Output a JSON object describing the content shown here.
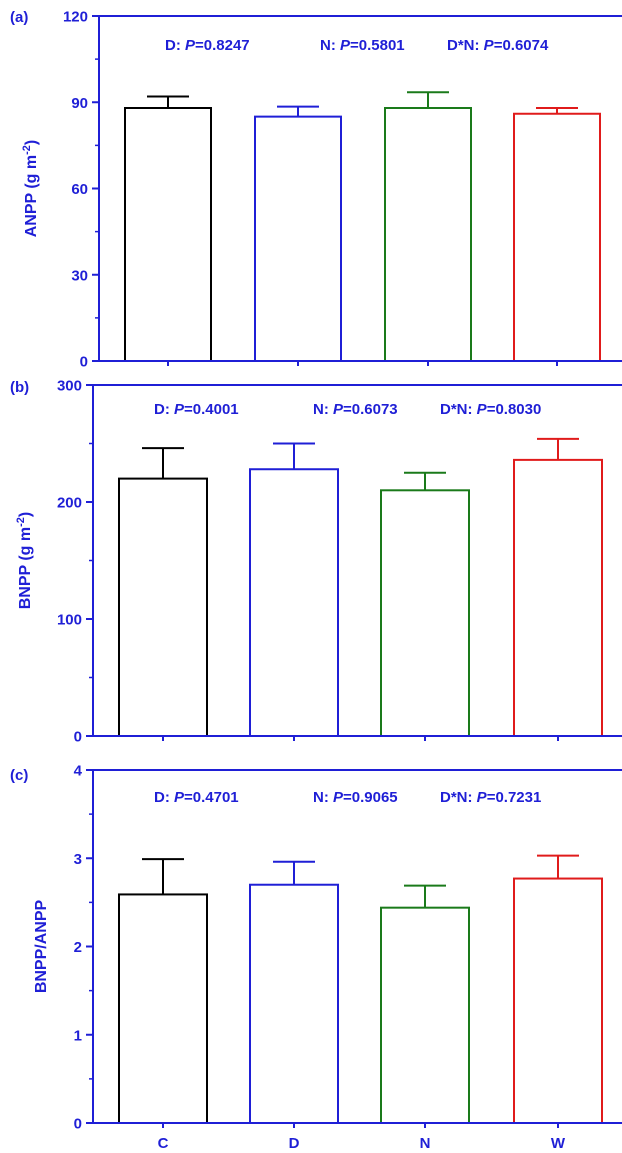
{
  "colors": {
    "axis": "#1f1fd6",
    "text": "#1f1fd6",
    "panel_label": "#1f1fd6"
  },
  "categories": [
    "C",
    "D",
    "N",
    "W"
  ],
  "chart_data": [
    {
      "type": "bar",
      "panel_label": "(a)",
      "categories": [
        "C",
        "D",
        "N",
        "W"
      ],
      "values": [
        88,
        85,
        88,
        86
      ],
      "errors": [
        4,
        3.5,
        5.5,
        2
      ],
      "bar_colors": [
        "#000000",
        "#1f1fd6",
        "#1a7a1a",
        "#e01b1b"
      ],
      "ylabel_main": "ANPP (g m",
      "ylabel_sup": "-2",
      "ylabel_tail": ")",
      "ylim": [
        0,
        120
      ],
      "yticks": [
        0,
        30,
        60,
        90,
        120
      ],
      "ytick_labels": [
        "0",
        "30",
        "60",
        "90",
        "120"
      ],
      "stats": [
        {
          "label": "D: ",
          "p": "P",
          "value": "=0.8247"
        },
        {
          "label": "N: ",
          "p": "P",
          "value": "=0.5801"
        },
        {
          "label": "D*N: ",
          "p": "P",
          "value": "=0.6074"
        }
      ],
      "show_xlabels": false
    },
    {
      "type": "bar",
      "panel_label": "(b)",
      "categories": [
        "C",
        "D",
        "N",
        "W"
      ],
      "values": [
        220,
        228,
        210,
        236
      ],
      "errors": [
        26,
        22,
        15,
        18
      ],
      "bar_colors": [
        "#000000",
        "#1f1fd6",
        "#1a7a1a",
        "#e01b1b"
      ],
      "ylabel_main": "BNPP (g m",
      "ylabel_sup": "-2",
      "ylabel_tail": ")",
      "ylim": [
        0,
        300
      ],
      "yticks": [
        0,
        100,
        200,
        300
      ],
      "ytick_labels": [
        "0",
        "100",
        "200",
        "300"
      ],
      "stats": [
        {
          "label": "D: ",
          "p": "P",
          "value": "=0.4001"
        },
        {
          "label": "N: ",
          "p": "P",
          "value": "=0.6073"
        },
        {
          "label": "D*N: ",
          "p": "P",
          "value": "=0.8030"
        }
      ],
      "show_xlabels": false
    },
    {
      "type": "bar",
      "panel_label": "(c)",
      "categories": [
        "C",
        "D",
        "N",
        "W"
      ],
      "values": [
        2.59,
        2.7,
        2.44,
        2.77
      ],
      "errors": [
        0.4,
        0.26,
        0.25,
        0.26
      ],
      "bar_colors": [
        "#000000",
        "#1f1fd6",
        "#1a7a1a",
        "#e01b1b"
      ],
      "ylabel_main": "BNPP/ANPP",
      "ylabel_sup": "",
      "ylabel_tail": "",
      "ylim": [
        0,
        4
      ],
      "yticks": [
        0,
        1,
        2,
        3,
        4
      ],
      "ytick_labels": [
        "0",
        "1",
        "2",
        "3",
        "4"
      ],
      "stats": [
        {
          "label": "D: ",
          "p": "P",
          "value": "=0.4701"
        },
        {
          "label": "N: ",
          "p": "P",
          "value": "=0.9065"
        },
        {
          "label": "D*N: ",
          "p": "P",
          "value": "=0.7231"
        }
      ],
      "show_xlabels": true
    }
  ]
}
